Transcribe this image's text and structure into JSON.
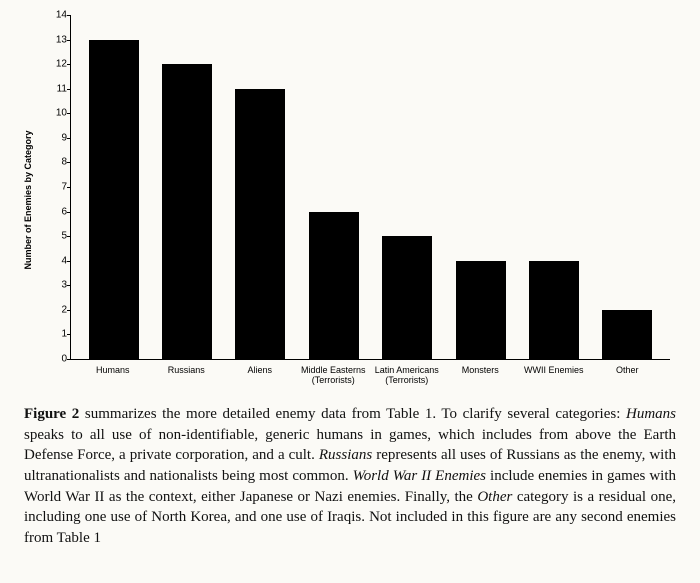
{
  "chart": {
    "type": "bar",
    "ylabel": "Number of Enemies by Category",
    "ylabel_fontsize": 9,
    "ylabel_fontweight": "bold",
    "ylim_min": 0,
    "ylim_max": 14,
    "ytick_step": 1,
    "yticks": [
      0,
      1,
      2,
      3,
      4,
      5,
      6,
      7,
      8,
      9,
      10,
      11,
      12,
      13,
      14
    ],
    "categories": [
      "Humans",
      "Russians",
      "Aliens",
      "Middle Easterns\n(Terrorists)",
      "Latin Americans\n(Terrorists)",
      "Monsters",
      "WWII Enemies",
      "Other"
    ],
    "values": [
      13,
      12,
      11,
      6,
      5,
      4,
      4,
      2
    ],
    "bar_color": "#000000",
    "bar_width": 0.68,
    "background_color": "#fbfaf6",
    "axis_color": "#000000",
    "xlabel_fontsize": 9,
    "ytick_fontsize": 10
  },
  "caption": {
    "figure_label": "Figure 2",
    "text_1": " summarizes the more detailed enemy data from Table 1. To clarify several categories: ",
    "ital_1": "Humans",
    "text_2": " speaks to all use of non-identifiable, generic humans in games, which includes from above the Earth Defense Force, a private corporation, and a cult. ",
    "ital_2": "Russians",
    "text_3": " represents all uses of Russians as the enemy, with ultranationalists and nationalists being most common. ",
    "ital_3": "World War II Enemies",
    "text_4": " include enemies in games with World War II as the context, either Japanese or Nazi enemies. Finally, the ",
    "ital_4": "Other",
    "text_5": " category is a residual one, including one use of North Korea, and one use of Iraqis. Not included in this figure are any second enemies from Table 1",
    "fontsize": 15,
    "fontfamily": "serif"
  }
}
